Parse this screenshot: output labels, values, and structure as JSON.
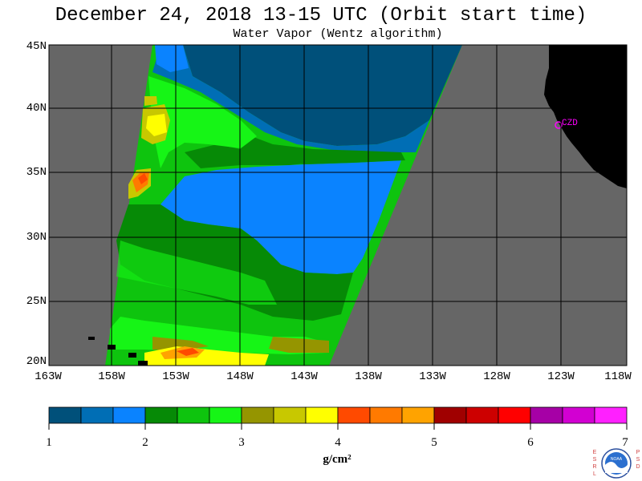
{
  "header": {
    "title": "December 24, 2018  13-15 UTC  (Orbit start time)",
    "subtitle": "Water Vapor (Wentz algorithm)"
  },
  "map": {
    "lat_labels": [
      "45N",
      "40N",
      "35N",
      "30N",
      "25N",
      "20N"
    ],
    "lon_labels": [
      "163W",
      "158W",
      "153W",
      "148W",
      "143W",
      "138W",
      "133W",
      "128W",
      "123W",
      "118W"
    ],
    "station_label": "CZD",
    "colors": {
      "no_data": "#666666",
      "land": "#000000",
      "station": "#ff00ff"
    }
  },
  "colorbar": {
    "tick_labels": [
      "1",
      "2",
      "3",
      "4",
      "5",
      "6",
      "7"
    ],
    "units": "g/cm²",
    "colors": [
      "#00507a",
      "#006eb5",
      "#0a83ff",
      "#068a06",
      "#0ec40e",
      "#16f516",
      "#959500",
      "#c8c800",
      "#ffff00",
      "#ff4a00",
      "#ff7a00",
      "#ffa300",
      "#a00000",
      "#cd0000",
      "#ff0000",
      "#a600a6",
      "#d200d2",
      "#ff20ff"
    ]
  },
  "logo": {
    "left_text": "ESRL",
    "right_text": "PSD",
    "center_text": "NOAA"
  }
}
